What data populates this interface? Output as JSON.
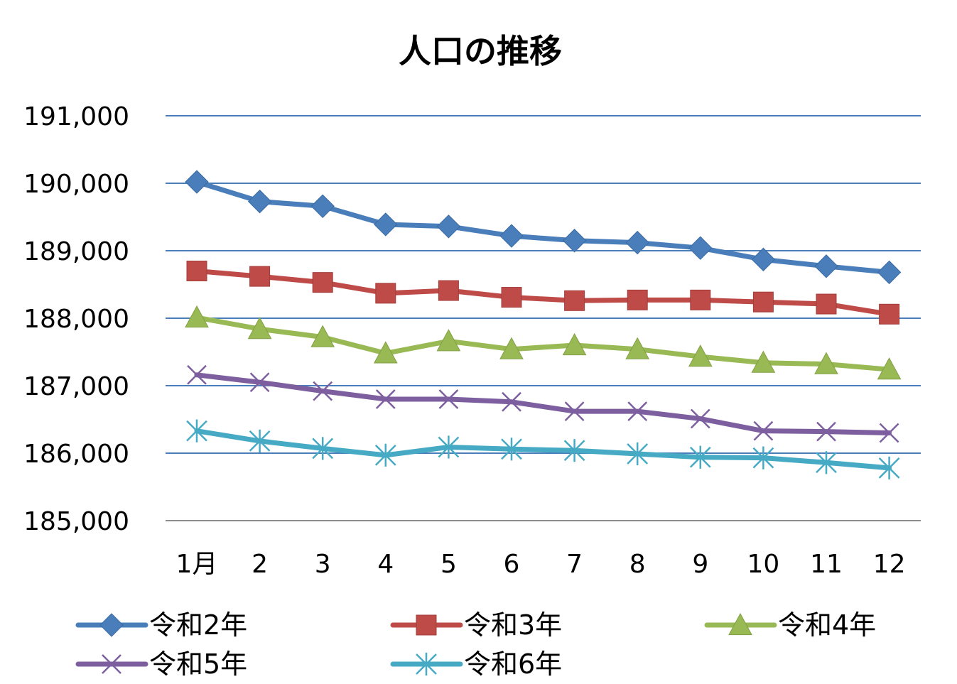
{
  "chart_data": {
    "type": "line",
    "title": "人口の推移",
    "categories": [
      "1月",
      "2",
      "3",
      "4",
      "5",
      "6",
      "7",
      "8",
      "9",
      "10",
      "11",
      "12"
    ],
    "ylim": [
      185000,
      191000
    ],
    "yticks": [
      "185,000",
      "186,000",
      "187,000",
      "188,000",
      "189,000",
      "190,000",
      "191,000"
    ],
    "ytick_values": [
      185000,
      186000,
      187000,
      188000,
      189000,
      190000,
      191000
    ],
    "grid": true,
    "legend_position": "bottom",
    "series": [
      {
        "name": "令和2年",
        "color": "#4A7EBB",
        "marker": "diamond",
        "values": [
          190020,
          189730,
          189660,
          189390,
          189360,
          189220,
          189150,
          189120,
          189040,
          188870,
          188770,
          188680
        ]
      },
      {
        "name": "令和3年",
        "color": "#BE4B48",
        "marker": "square",
        "values": [
          188700,
          188620,
          188530,
          188370,
          188410,
          188310,
          188260,
          188270,
          188270,
          188240,
          188210,
          188060
        ]
      },
      {
        "name": "令和4年",
        "color": "#98B954",
        "marker": "triangle",
        "values": [
          188010,
          187840,
          187720,
          187480,
          187660,
          187540,
          187600,
          187540,
          187430,
          187340,
          187320,
          187240
        ]
      },
      {
        "name": "令和5年",
        "color": "#7D5FA0",
        "marker": "x",
        "values": [
          187160,
          187050,
          186920,
          186800,
          186800,
          186760,
          186620,
          186620,
          186510,
          186330,
          186320,
          186300
        ]
      },
      {
        "name": "令和6年",
        "color": "#46AAC5",
        "marker": "star",
        "values": [
          186330,
          186180,
          186070,
          185970,
          186090,
          186060,
          186040,
          185990,
          185940,
          185930,
          185860,
          185780
        ]
      }
    ]
  }
}
